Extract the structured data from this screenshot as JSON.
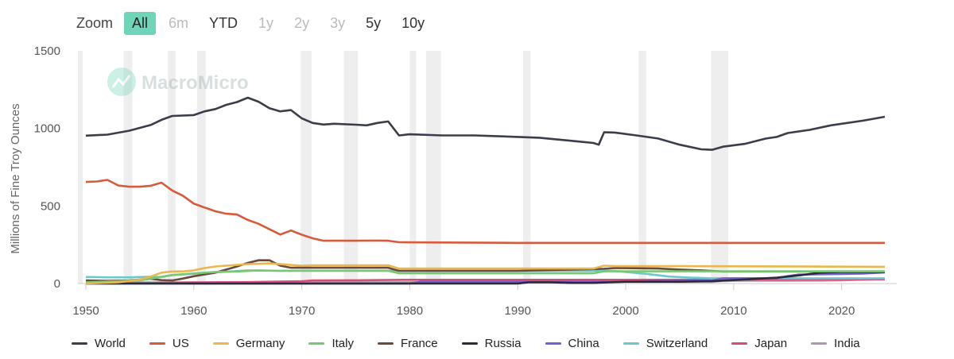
{
  "zoom": {
    "label": "Zoom",
    "buttons": [
      {
        "label": "All",
        "state": "active"
      },
      {
        "label": "6m",
        "state": "disabled"
      },
      {
        "label": "YTD",
        "state": "enabled"
      },
      {
        "label": "1y",
        "state": "disabled"
      },
      {
        "label": "2y",
        "state": "disabled"
      },
      {
        "label": "3y",
        "state": "disabled"
      },
      {
        "label": "5y",
        "state": "enabled"
      },
      {
        "label": "10y",
        "state": "enabled"
      }
    ]
  },
  "watermark": "MacroMicro",
  "chart_data": {
    "type": "line",
    "title": "",
    "xlabel": "",
    "ylabel": "Millions of Fine Troy Ounces",
    "xlim": [
      1950,
      2024
    ],
    "ylim": [
      0,
      1500
    ],
    "xticks": [
      "1950",
      "1960",
      "1970",
      "1980",
      "1990",
      "2000",
      "2010",
      "2020"
    ],
    "yticks": [
      "0",
      "500",
      "1000",
      "1500"
    ],
    "grid": "vertical-bands",
    "legend_position": "bottom",
    "recession_bands": [
      [
        1953.5,
        1954.3
      ],
      [
        1957.6,
        1958.3
      ],
      [
        1960.3,
        1961.1
      ],
      [
        1969.9,
        1970.9
      ],
      [
        1973.9,
        1975.2
      ],
      [
        1980.0,
        1980.6
      ],
      [
        1981.5,
        1982.9
      ],
      [
        1990.5,
        1991.2
      ],
      [
        2001.2,
        2001.9
      ],
      [
        2007.9,
        2009.5
      ]
    ],
    "series": [
      {
        "name": "World",
        "color": "#3a3d4a",
        "points": [
          [
            1950,
            953
          ],
          [
            1952,
            960
          ],
          [
            1954,
            985
          ],
          [
            1956,
            1022
          ],
          [
            1957,
            1055
          ],
          [
            1958,
            1080
          ],
          [
            1960,
            1086
          ],
          [
            1961,
            1110
          ],
          [
            1962,
            1125
          ],
          [
            1963,
            1152
          ],
          [
            1964,
            1170
          ],
          [
            1965,
            1198
          ],
          [
            1966,
            1172
          ],
          [
            1967,
            1130
          ],
          [
            1968,
            1110
          ],
          [
            1969,
            1118
          ],
          [
            1970,
            1065
          ],
          [
            1971,
            1035
          ],
          [
            1972,
            1025
          ],
          [
            1973,
            1030
          ],
          [
            1975,
            1024
          ],
          [
            1976,
            1020
          ],
          [
            1977,
            1035
          ],
          [
            1978,
            1045
          ],
          [
            1979,
            955
          ],
          [
            1980,
            962
          ],
          [
            1983,
            955
          ],
          [
            1986,
            955
          ],
          [
            1988,
            950
          ],
          [
            1992,
            940
          ],
          [
            1995,
            920
          ],
          [
            1997,
            906
          ],
          [
            1997.5,
            895
          ],
          [
            1998,
            975
          ],
          [
            1999,
            973
          ],
          [
            2001,
            955
          ],
          [
            2003,
            935
          ],
          [
            2005,
            895
          ],
          [
            2007,
            865
          ],
          [
            2008,
            862
          ],
          [
            2009,
            882
          ],
          [
            2011,
            900
          ],
          [
            2013,
            935
          ],
          [
            2014,
            945
          ],
          [
            2015,
            970
          ],
          [
            2017,
            990
          ],
          [
            2019,
            1020
          ],
          [
            2022,
            1050
          ],
          [
            2024,
            1075
          ]
        ]
      },
      {
        "name": "US",
        "color": "#d65a3c",
        "points": [
          [
            1950,
            655
          ],
          [
            1951,
            658
          ],
          [
            1952,
            668
          ],
          [
            1953,
            632
          ],
          [
            1954,
            624
          ],
          [
            1955,
            624
          ],
          [
            1956,
            630
          ],
          [
            1957,
            650
          ],
          [
            1958,
            600
          ],
          [
            1959,
            565
          ],
          [
            1960,
            515
          ],
          [
            1961,
            490
          ],
          [
            1962,
            466
          ],
          [
            1963,
            450
          ],
          [
            1964,
            445
          ],
          [
            1965,
            410
          ],
          [
            1966,
            385
          ],
          [
            1967,
            350
          ],
          [
            1968,
            316
          ],
          [
            1969,
            342
          ],
          [
            1970,
            315
          ],
          [
            1971,
            292
          ],
          [
            1972,
            276
          ],
          [
            1975,
            276
          ],
          [
            1977,
            277
          ],
          [
            1978,
            276
          ],
          [
            1979,
            266
          ],
          [
            1990,
            262
          ],
          [
            2024,
            262
          ]
        ]
      },
      {
        "name": "Germany",
        "color": "#e9b74e",
        "points": [
          [
            1950,
            0
          ],
          [
            1953,
            8
          ],
          [
            1955,
            25
          ],
          [
            1956,
            45
          ],
          [
            1957,
            70
          ],
          [
            1958,
            78
          ],
          [
            1959,
            78
          ],
          [
            1960,
            85
          ],
          [
            1961,
            100
          ],
          [
            1962,
            110
          ],
          [
            1963,
            115
          ],
          [
            1965,
            125
          ],
          [
            1967,
            130
          ],
          [
            1968,
            125
          ],
          [
            1969,
            120
          ],
          [
            1970,
            115
          ],
          [
            1971,
            118
          ],
          [
            1975,
            118
          ],
          [
            1978,
            118
          ],
          [
            1979,
            97
          ],
          [
            1985,
            97
          ],
          [
            1997,
            97
          ],
          [
            1998,
            115
          ],
          [
            1999,
            112
          ],
          [
            2005,
            112
          ],
          [
            2024,
            108
          ]
        ]
      },
      {
        "name": "Italy",
        "color": "#78c873",
        "points": [
          [
            1950,
            8
          ],
          [
            1955,
            20
          ],
          [
            1958,
            55
          ],
          [
            1960,
            65
          ],
          [
            1962,
            75
          ],
          [
            1964,
            78
          ],
          [
            1966,
            85
          ],
          [
            1968,
            82
          ],
          [
            1970,
            82
          ],
          [
            1975,
            82
          ],
          [
            1978,
            83
          ],
          [
            1979,
            66
          ],
          [
            1990,
            66
          ],
          [
            1997,
            66
          ],
          [
            1998,
            79
          ],
          [
            2024,
            79
          ]
        ]
      },
      {
        "name": "France",
        "color": "#6a4a3a",
        "points": [
          [
            1950,
            20
          ],
          [
            1952,
            18
          ],
          [
            1954,
            20
          ],
          [
            1956,
            30
          ],
          [
            1957,
            22
          ],
          [
            1958,
            20
          ],
          [
            1959,
            32
          ],
          [
            1960,
            47
          ],
          [
            1962,
            70
          ],
          [
            1963,
            90
          ],
          [
            1964,
            110
          ],
          [
            1965,
            133
          ],
          [
            1966,
            150
          ],
          [
            1967,
            150
          ],
          [
            1968,
            115
          ],
          [
            1969,
            102
          ],
          [
            1970,
            102
          ],
          [
            1975,
            102
          ],
          [
            1978,
            102
          ],
          [
            1979,
            82
          ],
          [
            1990,
            82
          ],
          [
            1998,
            95
          ],
          [
            1999,
            100
          ],
          [
            2003,
            97
          ],
          [
            2005,
            90
          ],
          [
            2007,
            85
          ],
          [
            2009,
            78
          ],
          [
            2012,
            78
          ],
          [
            2024,
            78
          ]
        ]
      },
      {
        "name": "Russia",
        "color": "#2a2a38",
        "points": [
          [
            1950,
            0
          ],
          [
            1990,
            0
          ],
          [
            1991,
            8
          ],
          [
            1993,
            8
          ],
          [
            1995,
            4
          ],
          [
            1997,
            4
          ],
          [
            2000,
            12
          ],
          [
            2005,
            12
          ],
          [
            2008,
            16
          ],
          [
            2010,
            22
          ],
          [
            2012,
            30
          ],
          [
            2014,
            38
          ],
          [
            2016,
            52
          ],
          [
            2018,
            70
          ],
          [
            2020,
            74
          ],
          [
            2022,
            74
          ],
          [
            2024,
            74
          ]
        ]
      },
      {
        "name": "China",
        "color": "#7060d0",
        "points": [
          [
            1950,
            0
          ],
          [
            1980,
            0
          ],
          [
            1981,
            12
          ],
          [
            2001,
            12
          ],
          [
            2002,
            16
          ],
          [
            2008,
            19
          ],
          [
            2009,
            34
          ],
          [
            2014,
            34
          ],
          [
            2015,
            48
          ],
          [
            2016,
            58
          ],
          [
            2018,
            60
          ],
          [
            2020,
            62
          ],
          [
            2022,
            64
          ],
          [
            2023,
            68
          ],
          [
            2024,
            72
          ]
        ]
      },
      {
        "name": "Switzerland",
        "color": "#6cc8cf",
        "points": [
          [
            1950,
            42
          ],
          [
            1952,
            40
          ],
          [
            1954,
            40
          ],
          [
            1956,
            44
          ],
          [
            1957,
            42
          ],
          [
            1958,
            55
          ],
          [
            1960,
            63
          ],
          [
            1962,
            72
          ],
          [
            1965,
            85
          ],
          [
            1968,
            82
          ],
          [
            1970,
            83
          ],
          [
            1975,
            83
          ],
          [
            1978,
            83
          ],
          [
            1979,
            82
          ],
          [
            1999,
            82
          ],
          [
            2000,
            75
          ],
          [
            2002,
            62
          ],
          [
            2004,
            45
          ],
          [
            2006,
            38
          ],
          [
            2008,
            34
          ],
          [
            2010,
            34
          ],
          [
            2024,
            34
          ]
        ]
      },
      {
        "name": "Japan",
        "color": "#d84a7a",
        "points": [
          [
            1950,
            1
          ],
          [
            1955,
            2
          ],
          [
            1960,
            7
          ],
          [
            1965,
            9
          ],
          [
            1970,
            15
          ],
          [
            1971,
            20
          ],
          [
            1975,
            21
          ],
          [
            1980,
            24
          ],
          [
            1990,
            24
          ],
          [
            2000,
            24
          ],
          [
            2010,
            25
          ],
          [
            2024,
            27
          ]
        ]
      },
      {
        "name": "India",
        "color": "#a89aa8",
        "points": [
          [
            1950,
            7
          ],
          [
            1960,
            7
          ],
          [
            1970,
            7
          ],
          [
            1980,
            8
          ],
          [
            1990,
            10
          ],
          [
            2000,
            11
          ],
          [
            2008,
            11
          ],
          [
            2009,
            18
          ],
          [
            2015,
            18
          ],
          [
            2018,
            19
          ],
          [
            2020,
            21
          ],
          [
            2022,
            25
          ],
          [
            2024,
            28
          ]
        ]
      }
    ]
  }
}
